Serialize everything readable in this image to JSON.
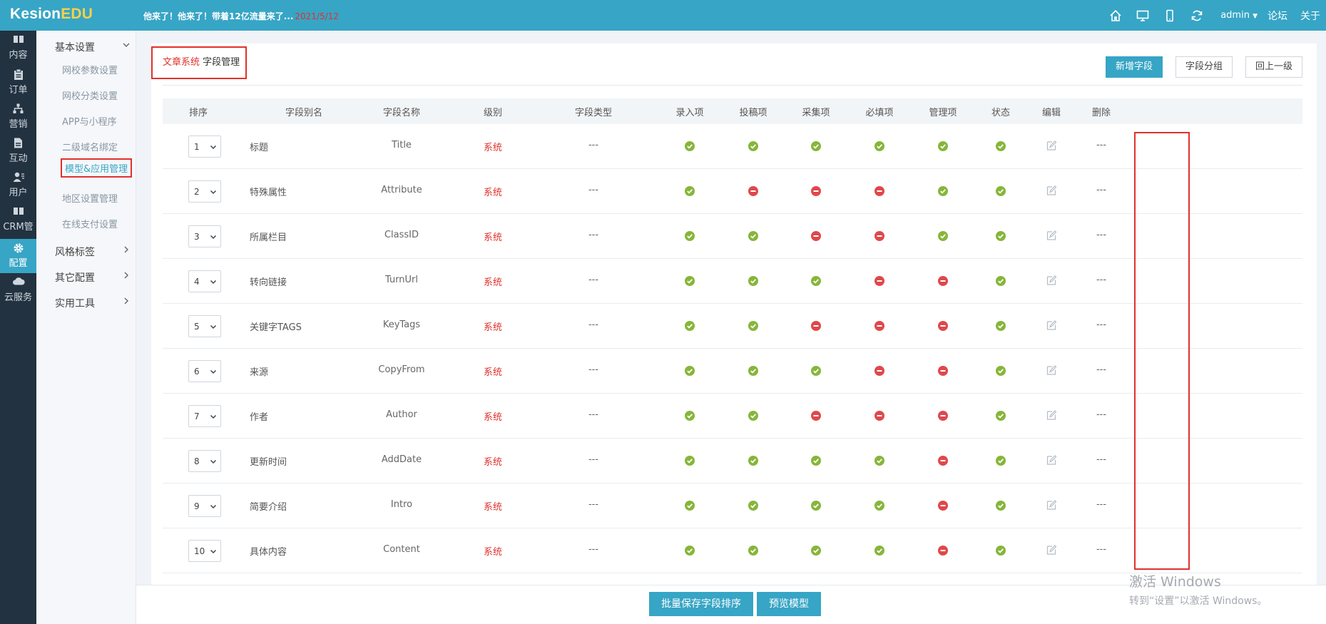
{
  "topbar": {
    "logo_main": "Kesion",
    "logo_accent": "EDU",
    "marquee_text": "他来了！他来了！带着12亿流量来了...",
    "marquee_date": "2021/5/12",
    "user": "admin",
    "links": [
      "论坛",
      "关于"
    ],
    "icons": [
      "home-icon",
      "desktop-icon",
      "mobile-icon",
      "refresh-icon"
    ]
  },
  "rail": {
    "items": [
      "内容",
      "订单",
      "营销",
      "互动",
      "用户",
      "CRM管",
      "配置",
      "云服务"
    ],
    "active": "配置"
  },
  "submenu": {
    "basic_group": "基本设置",
    "basic_items": [
      "网校参数设置",
      "网校分类设置",
      "APP与小程序",
      "二级域名绑定",
      "模型&应用管理",
      "地区设置管理",
      "在线支付设置"
    ],
    "current": "模型&应用管理",
    "other_groups": [
      "风格标签",
      "其它配置",
      "实用工具"
    ]
  },
  "breadcrumb": {
    "system": "文章系统",
    "page": "字段管理"
  },
  "buttons": {
    "add_field": "新增字段",
    "field_group": "字段分组",
    "back": "回上一级"
  },
  "table": {
    "headers": [
      "排序",
      "字段别名",
      "字段名称",
      "级别",
      "字段类型",
      "录入项",
      "投稿项",
      "采集项",
      "必填项",
      "管理项",
      "状态",
      "编辑",
      "删除"
    ],
    "rows": [
      {
        "order": "1",
        "alias": "标题",
        "name": "Title",
        "level": "系统",
        "type": "---",
        "flags": [
          true,
          true,
          true,
          true,
          true
        ],
        "status": true,
        "delete": "---"
      },
      {
        "order": "2",
        "alias": "特殊属性",
        "name": "Attribute",
        "level": "系统",
        "type": "---",
        "flags": [
          true,
          false,
          false,
          false,
          true
        ],
        "status": true,
        "delete": "---"
      },
      {
        "order": "3",
        "alias": "所属栏目",
        "name": "ClassID",
        "level": "系统",
        "type": "---",
        "flags": [
          true,
          true,
          false,
          false,
          true
        ],
        "status": true,
        "delete": "---"
      },
      {
        "order": "4",
        "alias": "转向链接",
        "name": "TurnUrl",
        "level": "系统",
        "type": "---",
        "flags": [
          true,
          true,
          true,
          false,
          false
        ],
        "status": true,
        "delete": "---"
      },
      {
        "order": "5",
        "alias": "关键字TAGS",
        "name": "KeyTags",
        "level": "系统",
        "type": "---",
        "flags": [
          true,
          true,
          false,
          false,
          false
        ],
        "status": true,
        "delete": "---"
      },
      {
        "order": "6",
        "alias": "来源",
        "name": "CopyFrom",
        "level": "系统",
        "type": "---",
        "flags": [
          true,
          true,
          true,
          false,
          false
        ],
        "status": true,
        "delete": "---"
      },
      {
        "order": "7",
        "alias": "作者",
        "name": "Author",
        "level": "系统",
        "type": "---",
        "flags": [
          true,
          true,
          false,
          false,
          false
        ],
        "status": true,
        "delete": "---"
      },
      {
        "order": "8",
        "alias": "更新时间",
        "name": "AddDate",
        "level": "系统",
        "type": "---",
        "flags": [
          true,
          true,
          true,
          true,
          false
        ],
        "status": true,
        "delete": "---"
      },
      {
        "order": "9",
        "alias": "简要介绍",
        "name": "Intro",
        "level": "系统",
        "type": "---",
        "flags": [
          true,
          true,
          true,
          true,
          false
        ],
        "status": true,
        "delete": "---"
      },
      {
        "order": "10",
        "alias": "具体内容",
        "name": "Content",
        "level": "系统",
        "type": "---",
        "flags": [
          true,
          true,
          true,
          true,
          false
        ],
        "status": true,
        "delete": "---"
      }
    ]
  },
  "bottom": {
    "save_order": "批量保存字段排序",
    "preview": "预览模型"
  },
  "watermark": {
    "line1": "激活 Windows",
    "line2": "转到“设置”以激活 Windows。"
  }
}
